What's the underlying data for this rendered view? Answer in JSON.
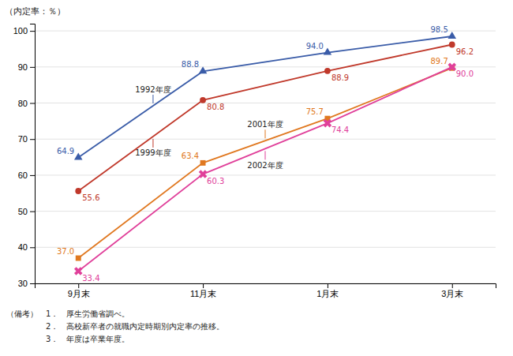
{
  "chart_data": {
    "type": "line",
    "y_label": "（内定率：％）",
    "categories": [
      "9月末",
      "11月末",
      "1月末",
      "3月末"
    ],
    "series": [
      {
        "name": "1992年度",
        "color": "#3a5ca8",
        "marker": "triangle",
        "values": [
          64.9,
          88.8,
          94.0,
          98.5
        ],
        "value_labels": [
          "64.9",
          "88.8",
          "94.0",
          "98.5"
        ]
      },
      {
        "name": "1999年度",
        "color": "#c0392b",
        "marker": "circle",
        "values": [
          55.6,
          80.8,
          88.9,
          96.2
        ],
        "value_labels": [
          "55.6",
          "80.8",
          "88.9",
          "96.2"
        ]
      },
      {
        "name": "2001年度",
        "color": "#e07820",
        "marker": "square",
        "values": [
          37.0,
          63.4,
          75.7,
          89.7
        ],
        "value_labels": [
          "37.0",
          "63.4",
          "75.7",
          "89.7"
        ]
      },
      {
        "name": "2002年度",
        "color": "#e0409a",
        "marker": "x",
        "values": [
          33.4,
          60.3,
          74.4,
          90.0
        ],
        "value_labels": [
          "33.4",
          "60.3",
          "74.4",
          "90.0"
        ]
      }
    ],
    "ylim": [
      30,
      102
    ],
    "yticks": [
      30,
      40,
      50,
      60,
      70,
      80,
      90,
      100
    ],
    "grid": true,
    "data_labels": true,
    "footnotes": [
      "（備考）　1．　厚生労働省調べ。",
      "　　　　　2．　高校新卒者の就職内定時期別内定率の推移。",
      "　　　　　3．　年度は卒業年度。"
    ]
  }
}
